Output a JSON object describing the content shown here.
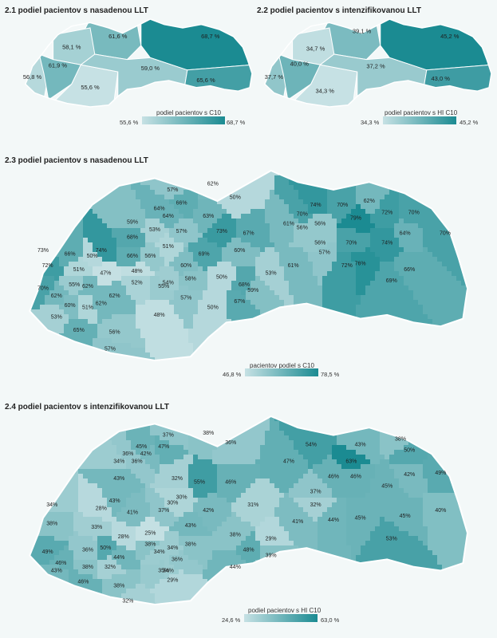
{
  "panels": [
    {
      "id": "p1",
      "title": "2.1 podiel pacientov s nasadenou LLT",
      "legend": {
        "title": "podiel pacientov s C10",
        "min": "55,6 %",
        "max": "68,7 %",
        "min_color": "#c6e1e4",
        "max_color": "#1b8b92"
      },
      "regions": [
        {
          "label": "61,6 %",
          "value": 61.6
        },
        {
          "label": "68,7 %",
          "value": 68.7
        },
        {
          "label": "58,1 %",
          "value": 58.1
        },
        {
          "label": "56,8 %",
          "value": 56.8
        },
        {
          "label": "61,9 %",
          "value": 61.9
        },
        {
          "label": "55,6 %",
          "value": 55.6
        },
        {
          "label": "59,0 %",
          "value": 59.0
        },
        {
          "label": "65,6 %",
          "value": 65.6
        }
      ]
    },
    {
      "id": "p2",
      "title": "2.2 podiel pacientov s intenzifikovanou LLT",
      "legend": {
        "title": "podiel pacientov s HI C10",
        "min": "34,3 %",
        "max": "45,2 %",
        "min_color": "#c6e1e4",
        "max_color": "#1b8b92"
      },
      "regions": [
        {
          "label": "39,1 %",
          "value": 39.1
        },
        {
          "label": "45,2 %",
          "value": 45.2
        },
        {
          "label": "34,7 %",
          "value": 34.7
        },
        {
          "label": "37,7 %",
          "value": 37.7
        },
        {
          "label": "40,0 %",
          "value": 40.0
        },
        {
          "label": "34,3 %",
          "value": 34.3
        },
        {
          "label": "37,2 %",
          "value": 37.2
        },
        {
          "label": "43,0 %",
          "value": 43.0
        }
      ]
    },
    {
      "id": "p3",
      "title": "2.3 podiel pacientov s nasadenou LLT",
      "legend": {
        "title": "pacientov podiel s C10",
        "min": "46,8 %",
        "max": "78,5 %",
        "min_color": "#c6e1e4",
        "max_color": "#1b8b92"
      },
      "district_labels": [
        "57%",
        "62%",
        "50%",
        "66%",
        "64%",
        "64%",
        "59%",
        "53%",
        "68%",
        "57%",
        "63%",
        "73%",
        "67%",
        "61%",
        "70%",
        "74%",
        "70%",
        "62%",
        "72%",
        "70%",
        "79%",
        "56%",
        "64%",
        "70%",
        "74%",
        "70%",
        "56%",
        "73%",
        "72%",
        "66%",
        "50%",
        "74%",
        "51%",
        "47%",
        "48%",
        "66%",
        "56%",
        "51%",
        "60%",
        "69%",
        "60%",
        "56%",
        "57%",
        "61%",
        "72%",
        "76%",
        "66%",
        "69%",
        "53%",
        "70%",
        "62%",
        "55%",
        "62%",
        "54%",
        "50%",
        "58%",
        "59%",
        "68%",
        "52%",
        "55%",
        "53%",
        "60%",
        "51%",
        "62%",
        "62%",
        "57%",
        "50%",
        "67%",
        "48%",
        "65%",
        "56%",
        "57%"
      ]
    },
    {
      "id": "p4",
      "title": "2.4 podiel pacientov s intenzifikovanou LLT",
      "legend": {
        "title": "podiel pacientov s HI C10",
        "min": "24,6 %",
        "max": "63,0 %",
        "min_color": "#c6e1e4",
        "max_color": "#1b8b92"
      },
      "district_labels": [
        "37%",
        "38%",
        "45%",
        "47%",
        "36%",
        "42%",
        "34%",
        "36%",
        "36%",
        "32%",
        "55%",
        "46%",
        "43%",
        "47%",
        "54%",
        "63%",
        "43%",
        "38%",
        "46%",
        "50%",
        "42%",
        "49%",
        "43%",
        "30%",
        "46%",
        "45%",
        "37%",
        "34%",
        "28%",
        "41%",
        "37%",
        "30%",
        "42%",
        "31%",
        "32%",
        "41%",
        "44%",
        "45%",
        "45%",
        "40%",
        "38%",
        "33%",
        "28%",
        "25%",
        "43%",
        "38%",
        "38%",
        "29%",
        "49%",
        "36%",
        "50%",
        "34%",
        "34%",
        "36%",
        "48%",
        "39%",
        "53%",
        "46%",
        "44%",
        "38%",
        "35%",
        "44%",
        "34%",
        "43%",
        "38%",
        "32%",
        "29%",
        "46%",
        "38%",
        "32%"
      ]
    }
  ]
}
